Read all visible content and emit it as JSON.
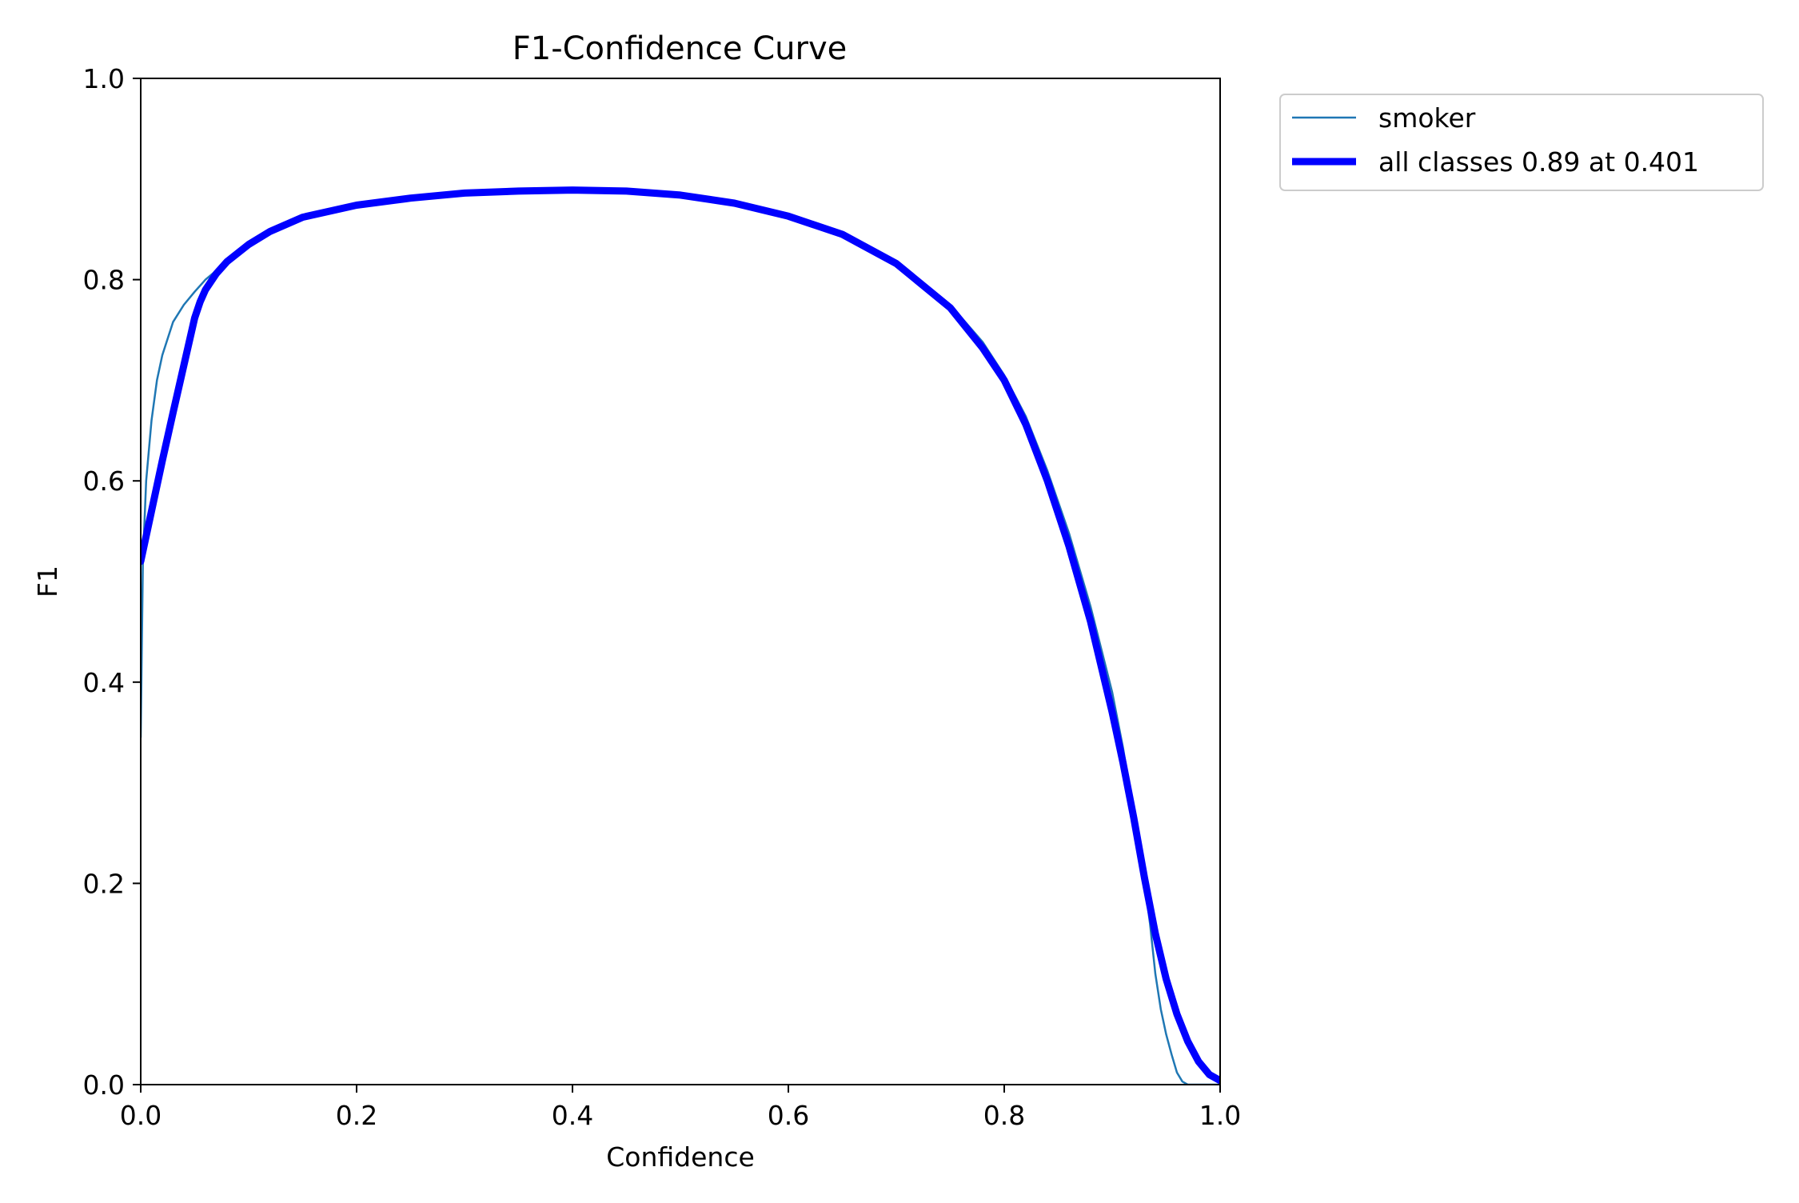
{
  "chart_data": {
    "type": "line",
    "title": "F1-Confidence Curve",
    "xlabel": "Confidence",
    "ylabel": "F1",
    "xlim": [
      0.0,
      1.0
    ],
    "ylim": [
      0.0,
      1.0
    ],
    "x_ticks": [
      0.0,
      0.2,
      0.4,
      0.6,
      0.8,
      1.0
    ],
    "x_tick_labels": [
      "0.0",
      "0.2",
      "0.4",
      "0.6",
      "0.8",
      "1.0"
    ],
    "y_ticks": [
      0.0,
      0.2,
      0.4,
      0.6,
      0.8,
      1.0
    ],
    "y_tick_labels": [
      "0.0",
      "0.2",
      "0.4",
      "0.6",
      "0.8",
      "1.0"
    ],
    "grid": false,
    "legend_position": "outside-top-right",
    "series": [
      {
        "name": "smoker",
        "color": "#1f77b4",
        "style": "thin",
        "points": [
          [
            0.0,
            0.345
          ],
          [
            0.002,
            0.52
          ],
          [
            0.005,
            0.6
          ],
          [
            0.01,
            0.66
          ],
          [
            0.015,
            0.7
          ],
          [
            0.02,
            0.725
          ],
          [
            0.03,
            0.758
          ],
          [
            0.04,
            0.775
          ],
          [
            0.05,
            0.788
          ],
          [
            0.06,
            0.8
          ],
          [
            0.08,
            0.818
          ],
          [
            0.1,
            0.835
          ],
          [
            0.12,
            0.848
          ],
          [
            0.15,
            0.862
          ],
          [
            0.2,
            0.874
          ],
          [
            0.25,
            0.881
          ],
          [
            0.3,
            0.886
          ],
          [
            0.35,
            0.888
          ],
          [
            0.4,
            0.889
          ],
          [
            0.45,
            0.888
          ],
          [
            0.5,
            0.884
          ],
          [
            0.55,
            0.876
          ],
          [
            0.6,
            0.863
          ],
          [
            0.65,
            0.845
          ],
          [
            0.7,
            0.818
          ],
          [
            0.75,
            0.775
          ],
          [
            0.78,
            0.738
          ],
          [
            0.8,
            0.705
          ],
          [
            0.82,
            0.664
          ],
          [
            0.84,
            0.61
          ],
          [
            0.86,
            0.548
          ],
          [
            0.88,
            0.475
          ],
          [
            0.9,
            0.39
          ],
          [
            0.91,
            0.335
          ],
          [
            0.92,
            0.27
          ],
          [
            0.93,
            0.2
          ],
          [
            0.935,
            0.16
          ],
          [
            0.94,
            0.11
          ],
          [
            0.945,
            0.075
          ],
          [
            0.95,
            0.05
          ],
          [
            0.955,
            0.03
          ],
          [
            0.96,
            0.012
          ],
          [
            0.965,
            0.003
          ],
          [
            0.97,
            0.0
          ],
          [
            1.0,
            0.0
          ]
        ]
      },
      {
        "name": "all classes 0.89 at 0.401",
        "color": "#0000ff",
        "style": "thick",
        "points": [
          [
            0.0,
            0.52
          ],
          [
            0.01,
            0.57
          ],
          [
            0.02,
            0.62
          ],
          [
            0.03,
            0.668
          ],
          [
            0.04,
            0.715
          ],
          [
            0.05,
            0.762
          ],
          [
            0.055,
            0.778
          ],
          [
            0.06,
            0.79
          ],
          [
            0.07,
            0.806
          ],
          [
            0.08,
            0.818
          ],
          [
            0.1,
            0.835
          ],
          [
            0.12,
            0.848
          ],
          [
            0.15,
            0.862
          ],
          [
            0.2,
            0.874
          ],
          [
            0.25,
            0.881
          ],
          [
            0.3,
            0.886
          ],
          [
            0.35,
            0.888
          ],
          [
            0.4,
            0.889
          ],
          [
            0.45,
            0.888
          ],
          [
            0.5,
            0.884
          ],
          [
            0.55,
            0.876
          ],
          [
            0.6,
            0.863
          ],
          [
            0.65,
            0.845
          ],
          [
            0.7,
            0.816
          ],
          [
            0.75,
            0.772
          ],
          [
            0.78,
            0.732
          ],
          [
            0.8,
            0.7
          ],
          [
            0.82,
            0.656
          ],
          [
            0.84,
            0.6
          ],
          [
            0.86,
            0.535
          ],
          [
            0.88,
            0.46
          ],
          [
            0.9,
            0.37
          ],
          [
            0.91,
            0.32
          ],
          [
            0.92,
            0.265
          ],
          [
            0.93,
            0.205
          ],
          [
            0.94,
            0.15
          ],
          [
            0.95,
            0.105
          ],
          [
            0.96,
            0.07
          ],
          [
            0.97,
            0.043
          ],
          [
            0.98,
            0.023
          ],
          [
            0.99,
            0.01
          ],
          [
            1.0,
            0.004
          ]
        ]
      }
    ]
  }
}
